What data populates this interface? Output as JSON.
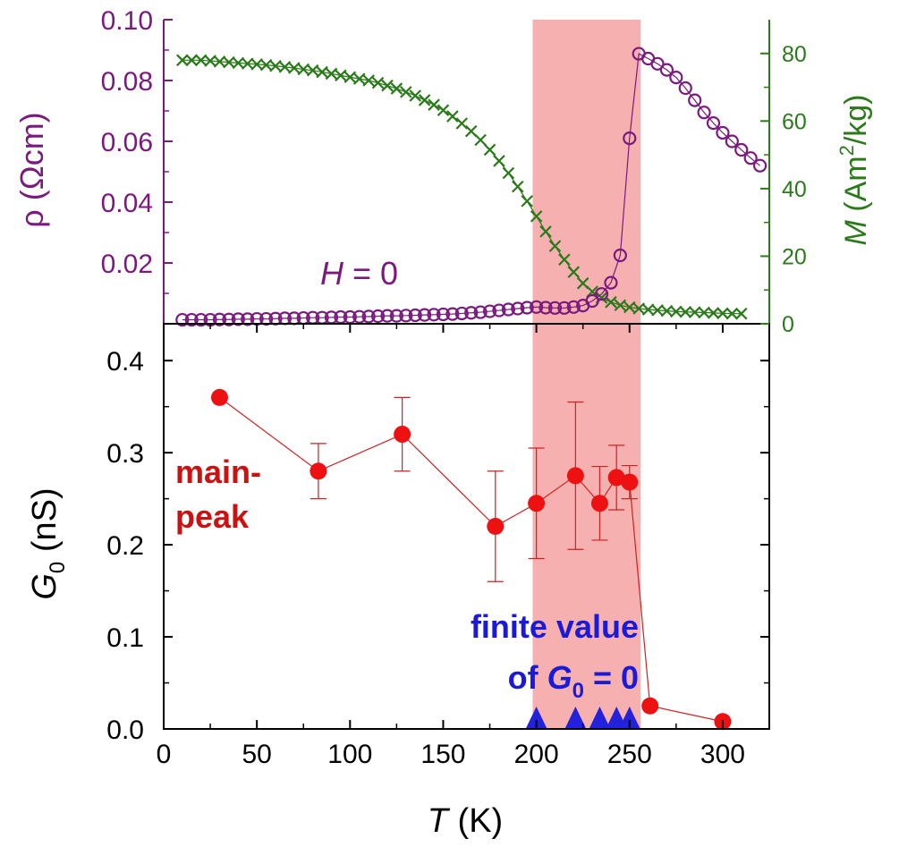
{
  "colors": {
    "rho": "#7a1a7e",
    "mag": "#2a7a1a",
    "g0": "#ee1111",
    "g0_error": "#cc2222",
    "triangle": "#2222dd",
    "shade": "#f7b0b0",
    "axis": "#000000"
  },
  "chart_data": [
    {
      "type": "scatter",
      "panel": "top",
      "annotation": {
        "prefix": "H",
        "suffix": " = 0"
      },
      "xlim": [
        0,
        325
      ],
      "shaded_x_range": [
        198,
        256
      ],
      "left_axis": {
        "label_symbol": "ρ",
        "label_unit": " (Ωcm)",
        "ylim": [
          0,
          0.1
        ],
        "ticks": [
          "0.02",
          "0.04",
          "0.06",
          "0.08",
          "0.10"
        ]
      },
      "right_axis": {
        "label_symbol": "M",
        "label_unit_pre": "  (Am",
        "label_unit_sup": "2",
        "label_unit_post": "/kg)",
        "ylim": [
          0,
          90
        ],
        "ticks": [
          "0",
          "20",
          "40",
          "60",
          "80"
        ]
      },
      "series": [
        {
          "quantity": "rho",
          "axis": "left",
          "marker": "open-circle",
          "x": [
            10,
            15,
            20,
            25,
            30,
            35,
            40,
            45,
            50,
            55,
            60,
            65,
            70,
            75,
            80,
            85,
            90,
            95,
            100,
            105,
            110,
            115,
            120,
            125,
            130,
            135,
            140,
            145,
            150,
            155,
            160,
            165,
            170,
            175,
            180,
            185,
            190,
            195,
            200,
            205,
            210,
            215,
            220,
            225,
            230,
            235,
            240,
            245,
            250,
            255,
            260,
            265,
            270,
            275,
            280,
            285,
            290,
            295,
            300,
            305,
            310,
            315,
            320
          ],
          "y": [
            0.0013,
            0.0013,
            0.0013,
            0.0013,
            0.0014,
            0.0014,
            0.0015,
            0.0015,
            0.0016,
            0.0016,
            0.0017,
            0.0018,
            0.0018,
            0.0019,
            0.002,
            0.002,
            0.0021,
            0.0022,
            0.0022,
            0.0023,
            0.0024,
            0.0025,
            0.0026,
            0.0026,
            0.0027,
            0.0028,
            0.0029,
            0.003,
            0.0031,
            0.0032,
            0.0034,
            0.0036,
            0.0038,
            0.0041,
            0.0044,
            0.0047,
            0.005,
            0.0053,
            0.0055,
            0.0053,
            0.0052,
            0.0052,
            0.0055,
            0.006,
            0.0075,
            0.0098,
            0.0135,
            0.0225,
            0.061,
            0.0888,
            0.0872,
            0.0855,
            0.0835,
            0.081,
            0.0775,
            0.0735,
            0.0695,
            0.066,
            0.0628,
            0.06,
            0.0572,
            0.0545,
            0.052
          ]
        },
        {
          "quantity": "M",
          "axis": "right",
          "marker": "x",
          "x": [
            10,
            15,
            20,
            25,
            30,
            35,
            40,
            45,
            50,
            55,
            60,
            65,
            70,
            75,
            80,
            85,
            90,
            95,
            100,
            105,
            110,
            115,
            120,
            125,
            130,
            135,
            140,
            145,
            150,
            155,
            160,
            165,
            170,
            175,
            180,
            185,
            190,
            195,
            200,
            205,
            210,
            215,
            220,
            225,
            230,
            235,
            240,
            245,
            250,
            255,
            260,
            265,
            270,
            275,
            280,
            285,
            290,
            295,
            300,
            305,
            310
          ],
          "y": [
            78,
            78,
            78,
            77.8,
            77.6,
            77.4,
            77.2,
            77,
            76.8,
            76.6,
            76.3,
            76,
            75.7,
            75.3,
            75,
            74.5,
            74,
            73.5,
            73,
            72.5,
            72,
            71.3,
            70.5,
            69.6,
            68.6,
            67.5,
            66.2,
            64.8,
            63.2,
            61.4,
            59.3,
            57,
            54.4,
            51.5,
            48.2,
            44.6,
            40.6,
            36.3,
            31.8,
            27.3,
            23,
            19,
            15.3,
            12,
            9.5,
            7.7,
            6.4,
            5.5,
            4.9,
            4.5,
            4.2,
            4,
            3.8,
            3.6,
            3.5,
            3.4,
            3.3,
            3.2,
            3.1,
            3,
            3
          ]
        }
      ]
    },
    {
      "type": "scatter",
      "panel": "bottom",
      "xlim": [
        0,
        325
      ],
      "ylim": [
        0,
        0.44
      ],
      "x_ticks": [
        "0",
        "50",
        "100",
        "150",
        "200",
        "250",
        "300"
      ],
      "y_ticks": [
        "0.0",
        "0.1",
        "0.2",
        "0.3",
        "0.4"
      ],
      "xlabel_symbol": "T",
      "xlabel_unit": " (K)",
      "ylabel_symbol": "G",
      "ylabel_sub": "0",
      "ylabel_unit": " (nS)",
      "shaded_x_range": [
        198,
        256
      ],
      "series": [
        {
          "name_line1": "main-",
          "name_line2": "peak",
          "marker": "filled-circle",
          "connected": true,
          "x": [
            30,
            83,
            128,
            178,
            200,
            221,
            234,
            243,
            250,
            261,
            300
          ],
          "y": [
            0.36,
            0.28,
            0.32,
            0.22,
            0.245,
            0.275,
            0.245,
            0.273,
            0.268,
            0.025,
            0.008
          ],
          "err": [
            null,
            0.03,
            0.04,
            0.06,
            0.06,
            0.08,
            0.04,
            0.035,
            0.018,
            null,
            null
          ]
        },
        {
          "name_line1": "finite value",
          "name_line2_pre": "of ",
          "name_line2_symbol": "G",
          "name_line2_sub": "0",
          "name_line2_post": " = 0",
          "marker": "filled-triangle",
          "x": [
            200,
            221,
            234,
            243,
            250
          ],
          "y": [
            0,
            0,
            0,
            0,
            0
          ]
        }
      ]
    }
  ]
}
